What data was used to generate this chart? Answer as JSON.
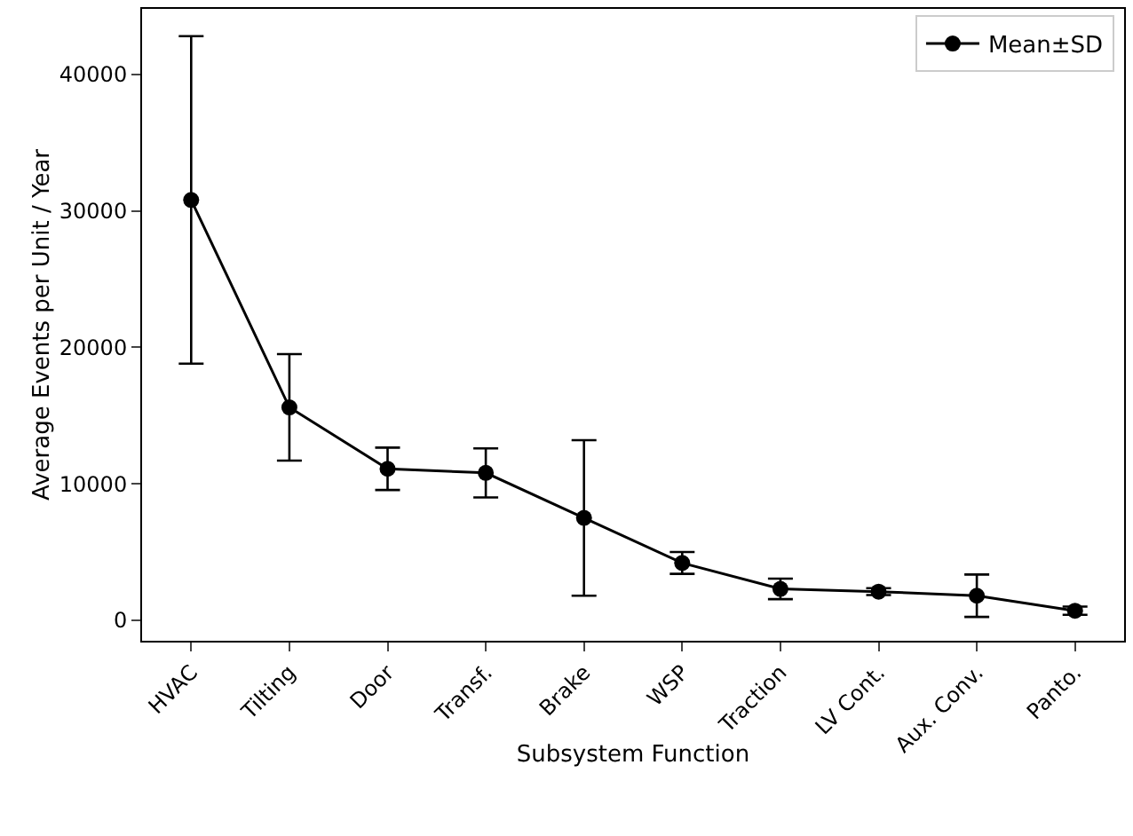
{
  "chart_data": {
    "type": "line",
    "xlabel": "Subsystem Function",
    "ylabel": "Average Events per Unit / Year",
    "categories": [
      "HVAC",
      "Tilting",
      "Door",
      "Transf.",
      "Brake",
      "WSP",
      "Traction",
      "LV Cont.",
      "Aux. Conv.",
      "Panto."
    ],
    "series": [
      {
        "name": "Mean±SD",
        "color": "#000000",
        "values": [
          30800,
          15600,
          11100,
          10800,
          7500,
          4200,
          2300,
          2100,
          1800,
          700
        ],
        "errors": [
          12000,
          3900,
          1550,
          1800,
          5700,
          800,
          750,
          250,
          1550,
          300
        ]
      }
    ],
    "ylim": [
      -1500,
      44800
    ],
    "yticks": [
      0,
      10000,
      20000,
      30000,
      40000
    ],
    "grid": false,
    "legend": "top right",
    "marker": "circle",
    "line_style": "solid"
  }
}
